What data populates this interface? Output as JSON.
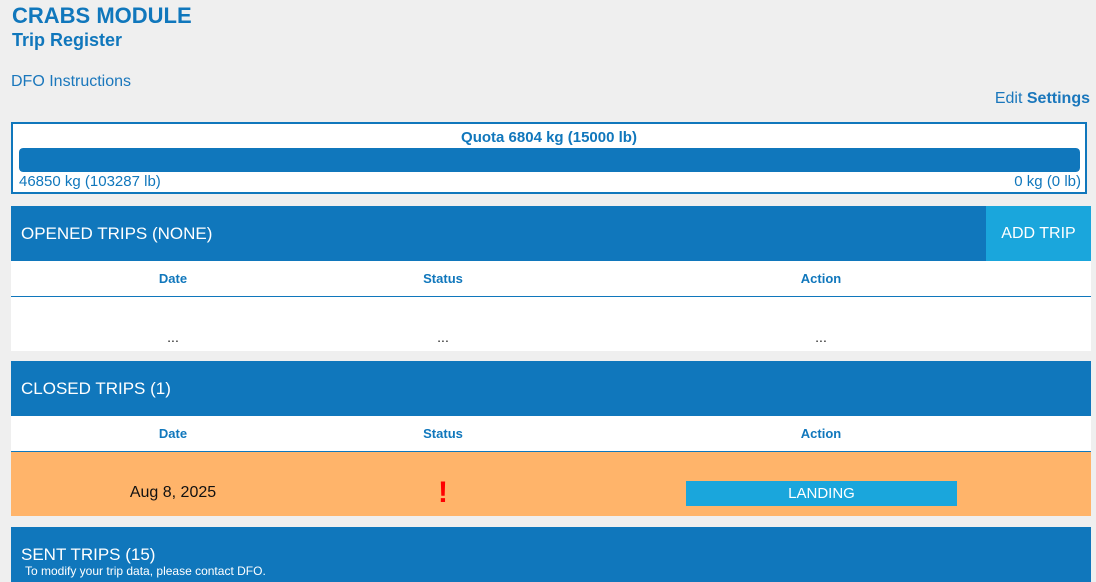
{
  "header": {
    "module_title": "CRABS MODULE",
    "page_title": "Trip Register",
    "dfo_link": "DFO Instructions",
    "edit_label": "Edit",
    "settings_label": "Settings"
  },
  "quota": {
    "title": "Quota 6804 kg (15000 lb)",
    "used": "46850 kg (103287 lb)",
    "remaining": "0 kg (0 lb)",
    "fill_percent": 100
  },
  "columns": {
    "date": "Date",
    "status": "Status",
    "action": "Action"
  },
  "opened": {
    "title": "OPENED TRIPS (NONE)",
    "add_label": "ADD TRIP",
    "row": {
      "date": "...",
      "status": "...",
      "action": "..."
    }
  },
  "closed": {
    "title": "CLOSED TRIPS (1)",
    "rows": [
      {
        "date": "Aug 8, 2025",
        "status": "!",
        "action": "LANDING"
      }
    ]
  },
  "sent": {
    "title": "SENT TRIPS (15)",
    "note": "To modify your trip data, please contact DFO."
  },
  "colors": {
    "primary": "#1077bc",
    "accent": "#1aa6dc",
    "warning_row": "#ffb46a",
    "alert": "#ff0000"
  }
}
